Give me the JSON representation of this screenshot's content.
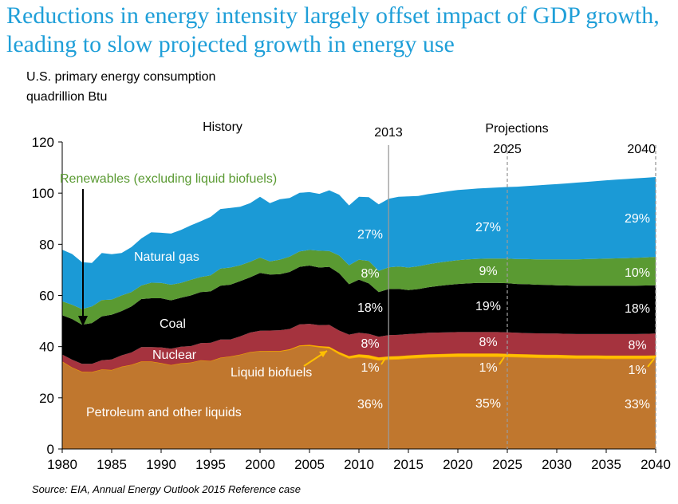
{
  "title": "Reductions in energy intensity largely offset impact of GDP growth, leading to slow projected growth in energy use",
  "subtitle_line1": "U.S. primary energy consumption",
  "subtitle_line2": "quadrillion Btu",
  "source": "Source:  EIA, Annual Energy Outlook 2015 Reference case",
  "chart_data": {
    "type": "area",
    "stacked": true,
    "ylim": [
      0,
      120
    ],
    "xlim": [
      1980,
      2040
    ],
    "yticks": [
      0,
      20,
      40,
      60,
      80,
      100,
      120
    ],
    "xticks": [
      1980,
      1985,
      1990,
      1995,
      2000,
      2005,
      2010,
      2015,
      2020,
      2025,
      2030,
      2035,
      2040
    ],
    "grid": false,
    "x": [
      1980,
      1981,
      1982,
      1983,
      1984,
      1985,
      1986,
      1987,
      1988,
      1989,
      1990,
      1991,
      1992,
      1993,
      1994,
      1995,
      1996,
      1997,
      1998,
      1999,
      2000,
      2001,
      2002,
      2003,
      2004,
      2005,
      2006,
      2007,
      2008,
      2009,
      2010,
      2011,
      2012,
      2013,
      2014,
      2015,
      2016,
      2017,
      2018,
      2019,
      2020,
      2021,
      2022,
      2023,
      2024,
      2025,
      2026,
      2027,
      2028,
      2029,
      2030,
      2031,
      2032,
      2033,
      2034,
      2035,
      2036,
      2037,
      2038,
      2039,
      2040
    ],
    "series": [
      {
        "name": "Petroleum and other liquids",
        "color": "#c0772e",
        "values": [
          34.2,
          31.9,
          30.2,
          30.1,
          31.1,
          30.9,
          32.2,
          32.9,
          34.2,
          34.2,
          33.6,
          32.8,
          33.5,
          33.8,
          34.7,
          34.4,
          35.7,
          36.2,
          36.9,
          37.9,
          38.3,
          38.2,
          38.2,
          38.8,
          40.3,
          40.4,
          39.8,
          39.4,
          37.1,
          35.4,
          35.9,
          35.5,
          34.7,
          35.0,
          35.1,
          35.4,
          35.6,
          35.8,
          35.9,
          36.0,
          36.1,
          36.1,
          36.1,
          36.1,
          36.1,
          36.0,
          35.9,
          35.8,
          35.7,
          35.6,
          35.6,
          35.5,
          35.4,
          35.4,
          35.4,
          35.3,
          35.3,
          35.3,
          35.3,
          35.3,
          35.4
        ]
      },
      {
        "name": "Liquid biofuels",
        "color": "#ffc000",
        "values": [
          0,
          0,
          0,
          0,
          0,
          0,
          0,
          0,
          0,
          0,
          0,
          0,
          0,
          0,
          0,
          0,
          0,
          0,
          0,
          0,
          0,
          0.1,
          0.1,
          0.2,
          0.2,
          0.3,
          0.4,
          0.6,
          0.8,
          0.9,
          1.1,
          1.2,
          1.1,
          1.2,
          1.2,
          1.2,
          1.2,
          1.2,
          1.2,
          1.2,
          1.2,
          1.2,
          1.2,
          1.2,
          1.2,
          1.2,
          1.2,
          1.2,
          1.2,
          1.2,
          1.2,
          1.2,
          1.2,
          1.2,
          1.2,
          1.2,
          1.2,
          1.2,
          1.2,
          1.2,
          1.2
        ]
      },
      {
        "name": "Nuclear",
        "color": "#a5333e",
        "values": [
          2.7,
          3.0,
          3.1,
          3.2,
          3.6,
          4.1,
          4.4,
          4.8,
          5.6,
          5.6,
          6.1,
          6.4,
          6.5,
          6.4,
          6.7,
          7.1,
          7.1,
          6.6,
          7.1,
          7.6,
          7.9,
          8.0,
          8.1,
          7.9,
          8.2,
          8.2,
          8.2,
          8.5,
          8.4,
          8.4,
          8.4,
          8.3,
          8.1,
          8.3,
          8.3,
          8.3,
          8.3,
          8.4,
          8.4,
          8.4,
          8.4,
          8.4,
          8.4,
          8.4,
          8.4,
          8.4,
          8.3,
          8.3,
          8.3,
          8.3,
          8.3,
          8.3,
          8.3,
          8.3,
          8.3,
          8.4,
          8.4,
          8.4,
          8.4,
          8.5,
          8.5
        ]
      },
      {
        "name": "Coal",
        "color": "#000000",
        "values": [
          15.4,
          15.9,
          15.3,
          15.9,
          17.1,
          17.5,
          17.3,
          18.0,
          18.8,
          19.1,
          19.2,
          18.9,
          19.1,
          19.8,
          19.9,
          20.1,
          21.0,
          21.4,
          21.6,
          21.6,
          22.6,
          21.9,
          21.9,
          22.3,
          22.5,
          22.8,
          22.5,
          22.7,
          22.4,
          19.7,
          20.8,
          19.7,
          17.4,
          18.0,
          18.0,
          17.2,
          17.4,
          17.8,
          18.2,
          18.5,
          18.8,
          19.0,
          19.2,
          19.2,
          19.2,
          19.2,
          19.1,
          19.1,
          19.0,
          19.0,
          18.9,
          18.9,
          18.9,
          18.9,
          18.9,
          18.9,
          18.9,
          18.9,
          18.9,
          18.9,
          18.9
        ]
      },
      {
        "name": "Renewables (excluding liquid biofuels)",
        "color": "#5a9a32",
        "values": [
          5.4,
          5.6,
          6.1,
          6.5,
          6.4,
          5.9,
          6.1,
          5.6,
          5.3,
          6.1,
          6.0,
          6.1,
          5.8,
          6.1,
          5.9,
          6.3,
          6.7,
          6.7,
          6.2,
          6.1,
          6.0,
          5.1,
          5.7,
          6.0,
          6.0,
          6.1,
          6.6,
          6.2,
          6.9,
          7.4,
          7.8,
          8.8,
          8.3,
          8.5,
          8.7,
          8.8,
          8.9,
          9.0,
          9.1,
          9.2,
          9.3,
          9.4,
          9.4,
          9.5,
          9.5,
          9.6,
          9.7,
          9.8,
          9.9,
          10.0,
          10.1,
          10.2,
          10.3,
          10.4,
          10.5,
          10.6,
          10.7,
          10.8,
          10.9,
          11.0,
          11.1
        ]
      },
      {
        "name": "Natural gas",
        "color": "#1b9ad6",
        "values": [
          20.2,
          19.8,
          18.3,
          17.0,
          18.4,
          17.7,
          16.6,
          17.6,
          18.4,
          19.7,
          19.6,
          20.0,
          20.7,
          21.3,
          21.8,
          22.8,
          23.3,
          23.3,
          22.9,
          22.9,
          23.8,
          22.8,
          23.6,
          22.9,
          22.9,
          22.6,
          22.2,
          23.7,
          23.8,
          23.4,
          24.6,
          24.9,
          26.0,
          26.8,
          27.3,
          27.8,
          27.5,
          27.4,
          27.3,
          27.4,
          27.4,
          27.4,
          27.5,
          27.6,
          27.8,
          28.0,
          28.3,
          28.6,
          28.9,
          29.2,
          29.4,
          29.7,
          30.0,
          30.2,
          30.4,
          30.6,
          30.8,
          30.9,
          31.1,
          31.1,
          31.2
        ]
      }
    ],
    "header_labels": {
      "history": "History",
      "projections": "Projections"
    },
    "vlines": [
      {
        "x": 2013,
        "label": "2013",
        "style": "solid"
      },
      {
        "x": 2025,
        "label": "2025",
        "style": "dashed"
      },
      {
        "x": 2040,
        "label": "2040",
        "style": "dashed"
      }
    ],
    "series_labels": {
      "renewables": "Renewables (excluding liquid biofuels)",
      "natural_gas": "Natural gas",
      "coal": "Coal",
      "nuclear": "Nuclear",
      "liquid_biofuels": "Liquid biofuels",
      "petroleum": "Petroleum and other liquids"
    },
    "share_labels": [
      {
        "x": 2013,
        "shares": {
          "natural_gas": "27%",
          "renewables": "8%",
          "coal": "18%",
          "nuclear": "8%",
          "liquid_biofuels": "1%",
          "petroleum": "36%"
        }
      },
      {
        "x": 2025,
        "shares": {
          "natural_gas": "27%",
          "renewables": "9%",
          "coal": "19%",
          "nuclear": "8%",
          "liquid_biofuels": "1%",
          "petroleum": "35%"
        }
      },
      {
        "x": 2040,
        "shares": {
          "natural_gas": "29%",
          "renewables": "10%",
          "coal": "18%",
          "nuclear": "8%",
          "liquid_biofuels": "1%",
          "petroleum": "33%"
        }
      }
    ]
  }
}
